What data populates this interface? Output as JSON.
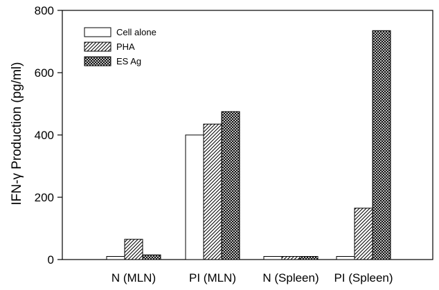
{
  "chart_data": {
    "type": "bar",
    "categories": [
      "N (MLN)",
      "PI (MLN)",
      "N (Spleen)",
      "PI (Spleen)"
    ],
    "series": [
      {
        "name": "Cell alone",
        "values": [
          10,
          400,
          10,
          10
        ],
        "pattern": "solid-white"
      },
      {
        "name": "PHA",
        "values": [
          65,
          435,
          10,
          165
        ],
        "pattern": "diagonal-hatch"
      },
      {
        "name": "ES Ag",
        "values": [
          15,
          475,
          10,
          735
        ],
        "pattern": "cross-hatch"
      }
    ],
    "title": "",
    "xlabel": "",
    "ylabel": "IFN-γ Production (pg/ml)",
    "ylim": [
      0,
      800
    ],
    "yticks": [
      0,
      200,
      400,
      600,
      800
    ],
    "grid": false,
    "legend_position": "top-left"
  }
}
